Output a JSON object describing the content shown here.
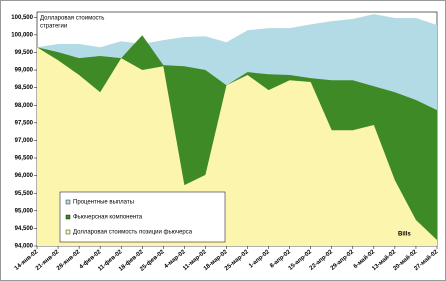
{
  "chart_data": {
    "type": "area",
    "title": [
      "Долларовая стоимость",
      "стратегии"
    ],
    "annotation": "Bills",
    "categories": [
      "14-янв-02",
      "21-янв-02",
      "28-янв-02",
      "4-фев-02",
      "11-фев-02",
      "18-фев-02",
      "25-фев-02",
      "4-мар-02",
      "11-мар-02",
      "18-мар-02",
      "25-мар-02",
      "1-апр-02",
      "8-апр-02",
      "15-апр-02",
      "22-апр-02",
      "29-апр-02",
      "6-май-02",
      "13-май-02",
      "20-май-02",
      "27-май-02"
    ],
    "series": [
      {
        "name": "Процентные выплаты",
        "color": "#b3dbe6",
        "values": [
          99650,
          99740,
          99740,
          99650,
          99820,
          99740,
          99850,
          99940,
          99960,
          99790,
          100130,
          100190,
          100190,
          100300,
          100390,
          100450,
          100590,
          100480,
          100480,
          100280
        ]
      },
      {
        "name": "Фьючерсная компонента",
        "color": "#3d8a26",
        "values": [
          99650,
          99510,
          99340,
          99400,
          99340,
          99990,
          99140,
          99110,
          99000,
          98570,
          98940,
          98880,
          98860,
          98770,
          98710,
          98710,
          98540,
          98370,
          98150,
          97860
        ]
      },
      {
        "name": "Долларовая стоимость позиции фьючерса",
        "color": "#fbf5ae",
        "values": [
          99650,
          99280,
          98860,
          98370,
          99340,
          99000,
          99110,
          95730,
          96020,
          98570,
          98860,
          98430,
          98710,
          98660,
          97290,
          97290,
          97440,
          95870,
          94740,
          94170
        ]
      }
    ],
    "ylim": [
      94000,
      100650
    ],
    "yticks": [
      {
        "value": 94000,
        "label": "94,000"
      },
      {
        "value": 94500,
        "label": "94,500"
      },
      {
        "value": 95000,
        "label": "95,000"
      },
      {
        "value": 95500,
        "label": "95,500"
      },
      {
        "value": 96000,
        "label": "96,000"
      },
      {
        "value": 96500,
        "label": "96,500"
      },
      {
        "value": 97000,
        "label": "97,000"
      },
      {
        "value": 97500,
        "label": "97,500"
      },
      {
        "value": 98000,
        "label": "98,000"
      },
      {
        "value": 98500,
        "label": "98,500"
      },
      {
        "value": 99000,
        "label": "99,000"
      },
      {
        "value": 99500,
        "label": "99,500"
      },
      {
        "value": 100000,
        "label": "100,000"
      },
      {
        "value": 100500,
        "label": "100,500"
      }
    ]
  }
}
